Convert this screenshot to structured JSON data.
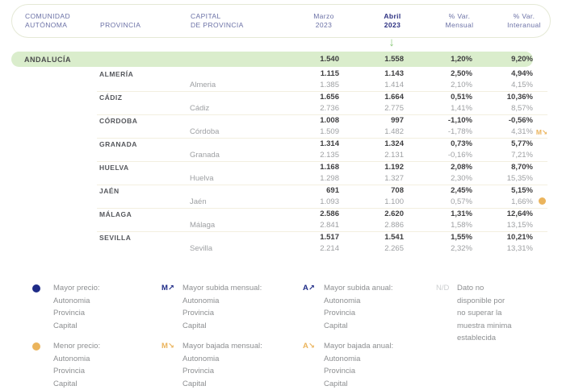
{
  "colors": {
    "navy": "#1e2b87",
    "header_purple": "#6b71a6",
    "abril_navy": "#2b2f80",
    "green_arrow": "#8cc97b",
    "region_bg": "#daedcc",
    "orange": "#ebb45c",
    "separator": "#f3efe0",
    "pill_border": "#e5e9d6"
  },
  "table": {
    "header": {
      "comunidad_l1": "COMUNIDAD",
      "comunidad_l2": "AUTÓNOMA",
      "provincia": "PROVINCIA",
      "capital_l1": "CAPITAL",
      "capital_l2": "DE PROVINCIA",
      "marzo_l1": "Marzo",
      "marzo_l2": "2023",
      "abril_l1": "Abril",
      "abril_l2": "2023",
      "mensual_l1": "% Var.",
      "mensual_l2": "Mensual",
      "interanual_l1": "% Var.",
      "interanual_l2": "Interanual",
      "arrow": "↓"
    },
    "region_row": {
      "name": "ANDALUCÍA",
      "marzo": "1.540",
      "abril": "1.558",
      "var_mensual": "1,20%",
      "var_interanual": "9,20%"
    },
    "rows": [
      {
        "provincia": "ALMERÍA",
        "p_marzo": "1.115",
        "p_abril": "1.143",
        "p_mensual": "2,50%",
        "p_interanual": "4,94%",
        "capital": "Almeria",
        "c_marzo": "1.385",
        "c_abril": "1.414",
        "c_mensual": "2,10%",
        "c_interanual": "4,15%",
        "flag_type": "",
        "flag_icon": "",
        "flag_name": ""
      },
      {
        "provincia": "CÁDIZ",
        "p_marzo": "1.656",
        "p_abril": "1.664",
        "p_mensual": "0,51%",
        "p_interanual": "10,36%",
        "capital": "Cádiz",
        "c_marzo": "2.736",
        "c_abril": "2.775",
        "c_mensual": "1,41%",
        "c_interanual": "8,57%",
        "flag_type": "",
        "flag_icon": "",
        "flag_name": ""
      },
      {
        "provincia": "CÓRDOBA",
        "p_marzo": "1.008",
        "p_abril": "997",
        "p_mensual": "-1,10%",
        "p_interanual": "-0,56%",
        "capital": "Córdoba",
        "c_marzo": "1.509",
        "c_abril": "1.482",
        "c_mensual": "-1,78%",
        "c_interanual": "4,31%",
        "flag_type": "text",
        "flag_icon": "M↘",
        "flag_name": "monthly-drop-flag-icon"
      },
      {
        "provincia": "GRANADA",
        "p_marzo": "1.314",
        "p_abril": "1.324",
        "p_mensual": "0,73%",
        "p_interanual": "5,77%",
        "capital": "Granada",
        "c_marzo": "2.135",
        "c_abril": "2.131",
        "c_mensual": "-0,16%",
        "c_interanual": "7,21%",
        "flag_type": "",
        "flag_icon": "",
        "flag_name": ""
      },
      {
        "provincia": "HUELVA",
        "p_marzo": "1.168",
        "p_abril": "1.192",
        "p_mensual": "2,08%",
        "p_interanual": "8,70%",
        "capital": "Huelva",
        "c_marzo": "1.298",
        "c_abril": "1.327",
        "c_mensual": "2,30%",
        "c_interanual": "15,35%",
        "flag_type": "",
        "flag_icon": "",
        "flag_name": ""
      },
      {
        "provincia": "JAÉN",
        "p_marzo": "691",
        "p_abril": "708",
        "p_mensual": "2,45%",
        "p_interanual": "5,15%",
        "capital": "Jaén",
        "c_marzo": "1.093",
        "c_abril": "1.100",
        "c_mensual": "0,57%",
        "c_interanual": "1,66%",
        "flag_type": "dot",
        "flag_icon": "",
        "flag_name": "lowest-price-dot-icon"
      },
      {
        "provincia": "MÁLAGA",
        "p_marzo": "2.586",
        "p_abril": "2.620",
        "p_mensual": "1,31%",
        "p_interanual": "12,64%",
        "capital": "Málaga",
        "c_marzo": "2.841",
        "c_abril": "2.886",
        "c_mensual": "1,58%",
        "c_interanual": "13,15%",
        "flag_type": "",
        "flag_icon": "",
        "flag_name": ""
      },
      {
        "provincia": "SEVILLA",
        "p_marzo": "1.517",
        "p_abril": "1.541",
        "p_mensual": "1,55%",
        "p_interanual": "10,21%",
        "capital": "Sevilla",
        "c_marzo": "2.214",
        "c_abril": "2.265",
        "c_mensual": "2,32%",
        "c_interanual": "13,31%",
        "flag_type": "",
        "flag_icon": "",
        "flag_name": ""
      }
    ]
  },
  "legend": {
    "items": [
      {
        "icon": "dot",
        "glyph": "",
        "color": "navy",
        "icon_name": "highest-price-dot-icon",
        "title": "Mayor precio:",
        "lines": [
          "Autonomia",
          "Provincia",
          "Capital"
        ]
      },
      {
        "icon": "text",
        "glyph": "M↗",
        "color": "navy",
        "icon_name": "monthly-rise-icon",
        "title": "Mayor subida mensual:",
        "lines": [
          "Autonomia",
          "Provincia",
          "Capital"
        ]
      },
      {
        "icon": "text",
        "glyph": "A↗",
        "color": "navy",
        "icon_name": "annual-rise-icon",
        "title": "Mayor subida anual:",
        "lines": [
          "Autonomia",
          "Provincia",
          "Capital"
        ]
      },
      {
        "icon": "text",
        "glyph": "N/D",
        "color": "gray",
        "icon_name": "no-data-icon",
        "title": "Dato no",
        "lines": [
          "disponible por",
          "no superar la",
          "muestra minima",
          "establecida"
        ]
      },
      {
        "icon": "dot",
        "glyph": "",
        "color": "orange",
        "icon_name": "lowest-price-dot-icon",
        "title": "Menor precio:",
        "lines": [
          "Autonomia",
          "Provincia",
          "Capital"
        ]
      },
      {
        "icon": "text",
        "glyph": "M↘",
        "color": "orange",
        "icon_name": "monthly-drop-icon",
        "title": "Mayor bajada mensual:",
        "lines": [
          "Autonomia",
          "Provincia",
          "Capital"
        ]
      },
      {
        "icon": "text",
        "glyph": "A↘",
        "color": "orange",
        "icon_name": "annual-drop-icon",
        "title": "Mayor bajada anual:",
        "lines": [
          "Autonomia",
          "Provincia",
          "Capital"
        ]
      }
    ]
  },
  "chart_data": {
    "type": "table",
    "title": "",
    "columns": [
      "Comunidad Autónoma / Provincia / Capital de Provincia",
      "Marzo 2023",
      "Abril 2023",
      "% Var. Mensual",
      "% Var. Interanual"
    ],
    "rows": [
      {
        "name": "ANDALUCÍA",
        "level": "comunidad",
        "marzo": 1540,
        "abril": 1558,
        "var_mensual_pct": 1.2,
        "var_interanual_pct": 9.2
      },
      {
        "name": "ALMERÍA",
        "level": "provincia",
        "marzo": 1115,
        "abril": 1143,
        "var_mensual_pct": 2.5,
        "var_interanual_pct": 4.94
      },
      {
        "name": "Almeria",
        "level": "capital",
        "marzo": 1385,
        "abril": 1414,
        "var_mensual_pct": 2.1,
        "var_interanual_pct": 4.15
      },
      {
        "name": "CÁDIZ",
        "level": "provincia",
        "marzo": 1656,
        "abril": 1664,
        "var_mensual_pct": 0.51,
        "var_interanual_pct": 10.36
      },
      {
        "name": "Cádiz",
        "level": "capital",
        "marzo": 2736,
        "abril": 2775,
        "var_mensual_pct": 1.41,
        "var_interanual_pct": 8.57
      },
      {
        "name": "CÓRDOBA",
        "level": "provincia",
        "marzo": 1008,
        "abril": 997,
        "var_mensual_pct": -1.1,
        "var_interanual_pct": -0.56
      },
      {
        "name": "Córdoba",
        "level": "capital",
        "marzo": 1509,
        "abril": 1482,
        "var_mensual_pct": -1.78,
        "var_interanual_pct": 4.31,
        "flag": "mayor_bajada_mensual"
      },
      {
        "name": "GRANADA",
        "level": "provincia",
        "marzo": 1314,
        "abril": 1324,
        "var_mensual_pct": 0.73,
        "var_interanual_pct": 5.77
      },
      {
        "name": "Granada",
        "level": "capital",
        "marzo": 2135,
        "abril": 2131,
        "var_mensual_pct": -0.16,
        "var_interanual_pct": 7.21
      },
      {
        "name": "HUELVA",
        "level": "provincia",
        "marzo": 1168,
        "abril": 1192,
        "var_mensual_pct": 2.08,
        "var_interanual_pct": 8.7
      },
      {
        "name": "Huelva",
        "level": "capital",
        "marzo": 1298,
        "abril": 1327,
        "var_mensual_pct": 2.3,
        "var_interanual_pct": 15.35
      },
      {
        "name": "JAÉN",
        "level": "provincia",
        "marzo": 691,
        "abril": 708,
        "var_mensual_pct": 2.45,
        "var_interanual_pct": 5.15
      },
      {
        "name": "Jaén",
        "level": "capital",
        "marzo": 1093,
        "abril": 1100,
        "var_mensual_pct": 0.57,
        "var_interanual_pct": 1.66,
        "flag": "menor_precio"
      },
      {
        "name": "MÁLAGA",
        "level": "provincia",
        "marzo": 2586,
        "abril": 2620,
        "var_mensual_pct": 1.31,
        "var_interanual_pct": 12.64
      },
      {
        "name": "Málaga",
        "level": "capital",
        "marzo": 2841,
        "abril": 2886,
        "var_mensual_pct": 1.58,
        "var_interanual_pct": 13.15
      },
      {
        "name": "SEVILLA",
        "level": "provincia",
        "marzo": 1517,
        "abril": 1541,
        "var_mensual_pct": 1.55,
        "var_interanual_pct": 10.21
      },
      {
        "name": "Sevilla",
        "level": "capital",
        "marzo": 2214,
        "abril": 2265,
        "var_mensual_pct": 2.32,
        "var_interanual_pct": 13.31
      }
    ]
  }
}
